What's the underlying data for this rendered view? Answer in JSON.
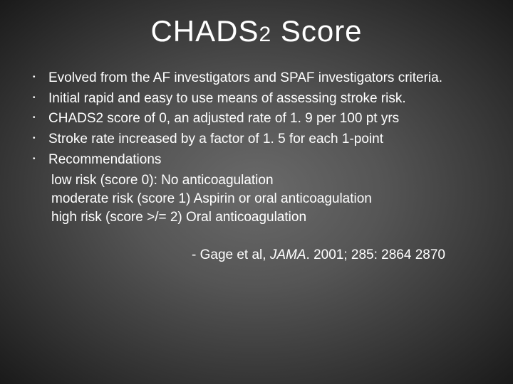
{
  "title_main": "CHADS",
  "title_sub": "2",
  "title_end": " Score",
  "bullets": [
    "Evolved from the AF investigators and SPAF investigators criteria.",
    "Initial rapid and easy to use means of assessing stroke risk.",
    "CHADS2 score of 0, an adjusted rate of 1. 9 per 100 pt yrs",
    "Stroke rate increased by a factor of 1. 5 for each 1-point",
    "Recommendations"
  ],
  "sublines": [
    "low risk (score 0): No anticoagulation",
    "moderate risk (score 1) Aspirin or oral anticoagulation",
    "high risk (score >/= 2) Oral anticoagulation"
  ],
  "citation_prefix": "- Gage et al, ",
  "citation_italic": "JAMA",
  "citation_suffix": ". 2001; 285: 2864 2870"
}
